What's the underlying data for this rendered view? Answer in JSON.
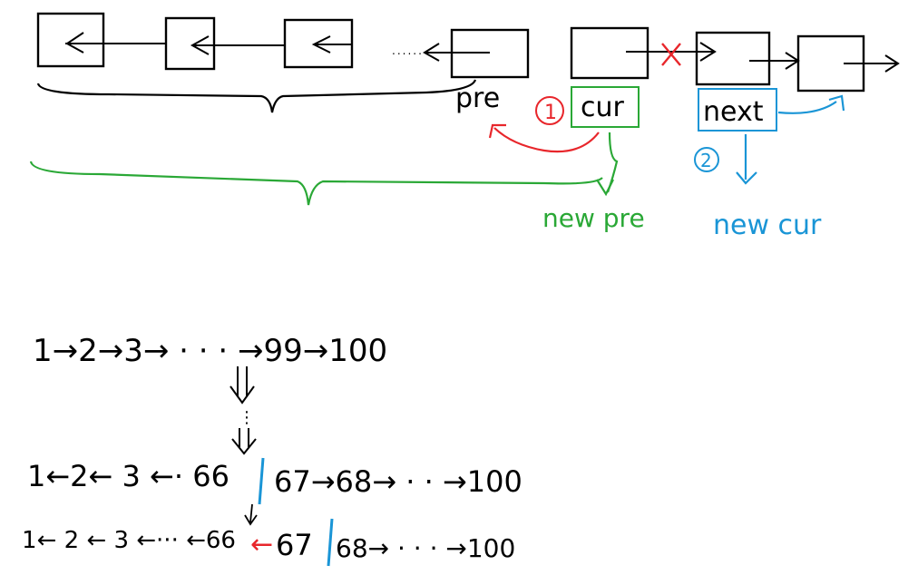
{
  "colors": {
    "ink": "#000000",
    "red": "#e8262b",
    "green": "#2aa836",
    "blue": "#1a95d6"
  },
  "top_diagram": {
    "label_pre": "pre",
    "label_cur": "cur",
    "label_next": "next",
    "step_one": "1",
    "step_two": "2",
    "label_new_pre": "new pre",
    "label_new_cur": "new cur",
    "ellipsis": "......"
  },
  "bottom_diagram": {
    "original_list": "1→2→3→ · · · →99→100",
    "intermediate_dots": "⋮",
    "state_one_left": "1←2← 3 ←· 66",
    "state_one_right": "67→68→ · · →100",
    "state_two_left": "1← 2 ← 3 ←··· ←66",
    "state_two_red_arrow": "←",
    "state_two_mid": "67",
    "state_two_right": "68→ · · · →100"
  }
}
